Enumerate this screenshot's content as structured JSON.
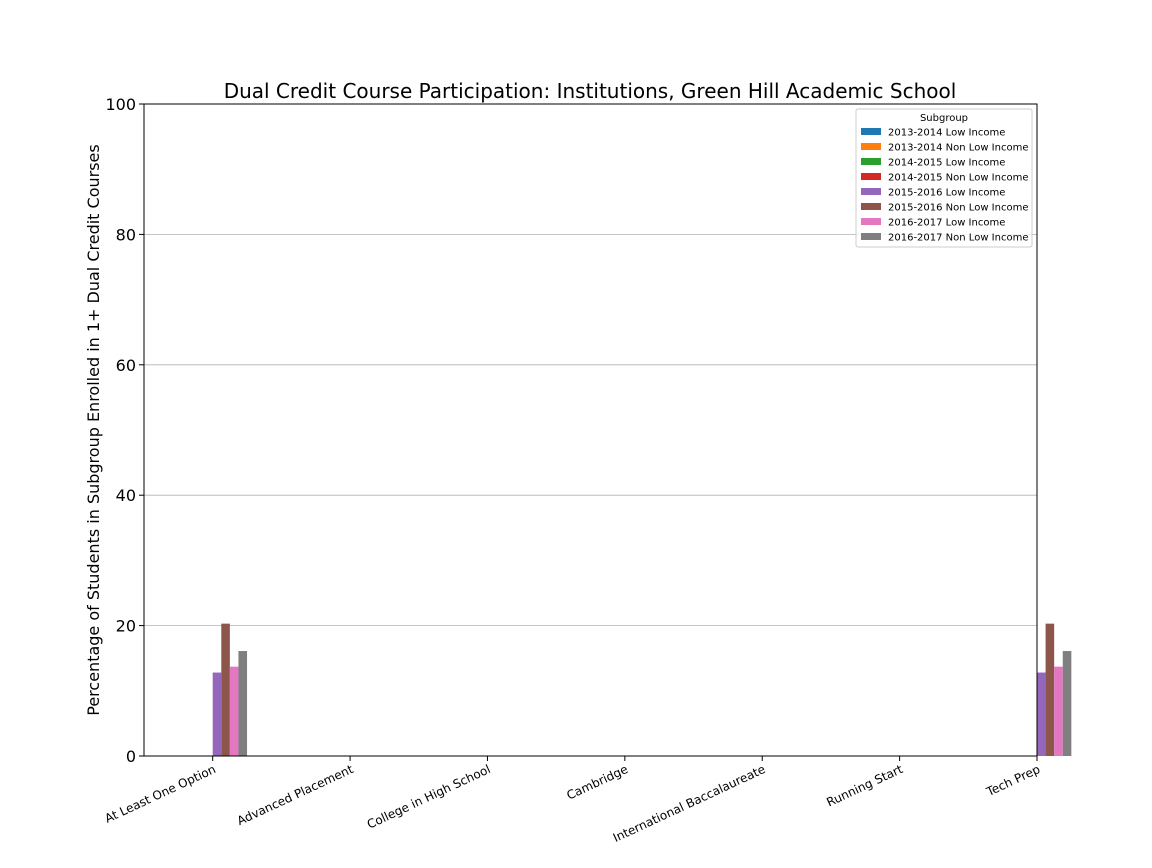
{
  "chart_data": {
    "type": "bar",
    "title": "Dual Credit Course Participation: Institutions, Green Hill Academic School",
    "xlabel": "",
    "ylabel": "Percentage of Students in Subgroup Enrolled in 1+ Dual Credit Courses",
    "ylim": [
      0,
      100
    ],
    "yticks": [
      "0",
      "20",
      "40",
      "60",
      "80",
      "100"
    ],
    "grid": "y",
    "legend_title": "Subgroup",
    "legend_position": "top-right",
    "categories": [
      "At Least One Option",
      "Advanced Placement",
      "College in High School",
      "Cambridge",
      "International Baccalaureate",
      "Running Start",
      "Tech Prep"
    ],
    "series": [
      {
        "name": "2013-2014 Low Income",
        "color": "#1f77b4",
        "values": [
          0,
          0,
          0,
          0,
          0,
          0,
          0
        ]
      },
      {
        "name": "2013-2014 Non Low Income",
        "color": "#ff7f0e",
        "values": [
          0,
          0,
          0,
          0,
          0,
          0,
          0
        ]
      },
      {
        "name": "2014-2015 Low Income",
        "color": "#2ca02c",
        "values": [
          0,
          0,
          0,
          0,
          0,
          0,
          0
        ]
      },
      {
        "name": "2014-2015 Non Low Income",
        "color": "#d62728",
        "values": [
          0,
          0,
          0,
          0,
          0,
          0,
          0
        ]
      },
      {
        "name": "2015-2016 Low Income",
        "color": "#9467bd",
        "values": [
          12.8,
          0,
          0,
          0,
          0,
          0,
          12.8
        ]
      },
      {
        "name": "2015-2016 Non Low Income",
        "color": "#8c564b",
        "values": [
          20.3,
          0,
          0,
          0,
          0,
          0,
          20.3
        ]
      },
      {
        "name": "2016-2017 Low Income",
        "color": "#e377c2",
        "values": [
          13.7,
          0,
          0,
          0,
          0,
          0,
          13.7
        ]
      },
      {
        "name": "2016-2017 Non Low Income",
        "color": "#7f7f7f",
        "values": [
          16.1,
          0,
          0,
          0,
          0,
          0,
          16.1
        ]
      }
    ]
  }
}
